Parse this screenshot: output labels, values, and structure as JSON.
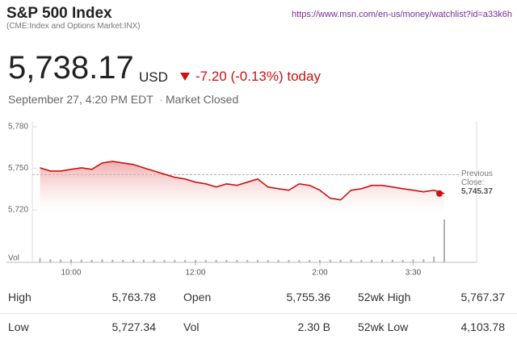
{
  "header": {
    "title": "S&P 500 Index",
    "subtitle": "(CME:Index and Options Market:INX)",
    "url": "https://www.msn.com/en-us/money/watchlist?id=a33k6h"
  },
  "quote": {
    "price": "5,738.17",
    "currency": "USD",
    "change": "-7.20 (-0.13%) today",
    "timestamp": "September 27, 4:20 PM EDT",
    "status": "Market Closed"
  },
  "chart_data": {
    "type": "line",
    "color": "#cc1111",
    "x": [
      570,
      580,
      590,
      600,
      610,
      620,
      630,
      640,
      650,
      660,
      670,
      680,
      690,
      700,
      710,
      720,
      730,
      740,
      750,
      760,
      770,
      780,
      790,
      800,
      810,
      820,
      830,
      840,
      850,
      860,
      870,
      880,
      890,
      900,
      910,
      920,
      930,
      940,
      950,
      960
    ],
    "values": [
      5750.3,
      5748.0,
      5748.0,
      5749.2,
      5750.3,
      5749.2,
      5753.8,
      5755.0,
      5753.8,
      5752.7,
      5750.3,
      5748.0,
      5745.7,
      5743.4,
      5742.2,
      5739.9,
      5738.7,
      5736.4,
      5738.7,
      5737.6,
      5739.9,
      5742.2,
      5736.4,
      5735.2,
      5734.1,
      5738.7,
      5737.6,
      5734.1,
      5728.3,
      5727.1,
      5734.1,
      5735.2,
      5737.6,
      5737.6,
      5736.4,
      5735.2,
      5734.1,
      5732.9,
      5734.1,
      5731.7
    ],
    "xlim": [
      570,
      960
    ],
    "xticks": [
      {
        "value": 600,
        "label": "10:00"
      },
      {
        "value": 720,
        "label": "12:00"
      },
      {
        "value": 840,
        "label": "2:00"
      },
      {
        "value": 930,
        "label": "3:30"
      }
    ],
    "ylim": [
      5717,
      5780
    ],
    "yticks": [
      {
        "value": 5780,
        "label": "5,780"
      },
      {
        "value": 5750,
        "label": "5,750"
      },
      {
        "value": 5720,
        "label": "5,720"
      }
    ],
    "previous_close": {
      "label": "Previous Close:",
      "value": 5745.37,
      "value_label": "5,745.37"
    },
    "volume": {
      "label": "Vol",
      "color": "#b0b0b0",
      "ylim": [
        0,
        300
      ],
      "values": [
        30,
        22,
        20,
        20,
        18,
        18,
        20,
        18,
        18,
        18,
        18,
        16,
        16,
        16,
        16,
        16,
        16,
        16,
        16,
        16,
        16,
        16,
        16,
        16,
        16,
        16,
        16,
        16,
        18,
        18,
        18,
        16,
        18,
        18,
        18,
        18,
        20,
        22,
        40,
        300
      ]
    }
  },
  "stats": {
    "rows": [
      [
        {
          "label": "High",
          "value": "5,763.78"
        },
        {
          "label": "Open",
          "value": "5,755.36"
        },
        {
          "label": "52wk High",
          "value": "5,767.37"
        }
      ],
      [
        {
          "label": "Low",
          "value": "5,727.34"
        },
        {
          "label": "Vol",
          "value": "2.30 B"
        },
        {
          "label": "52wk Low",
          "value": "4,103.78"
        }
      ]
    ]
  }
}
